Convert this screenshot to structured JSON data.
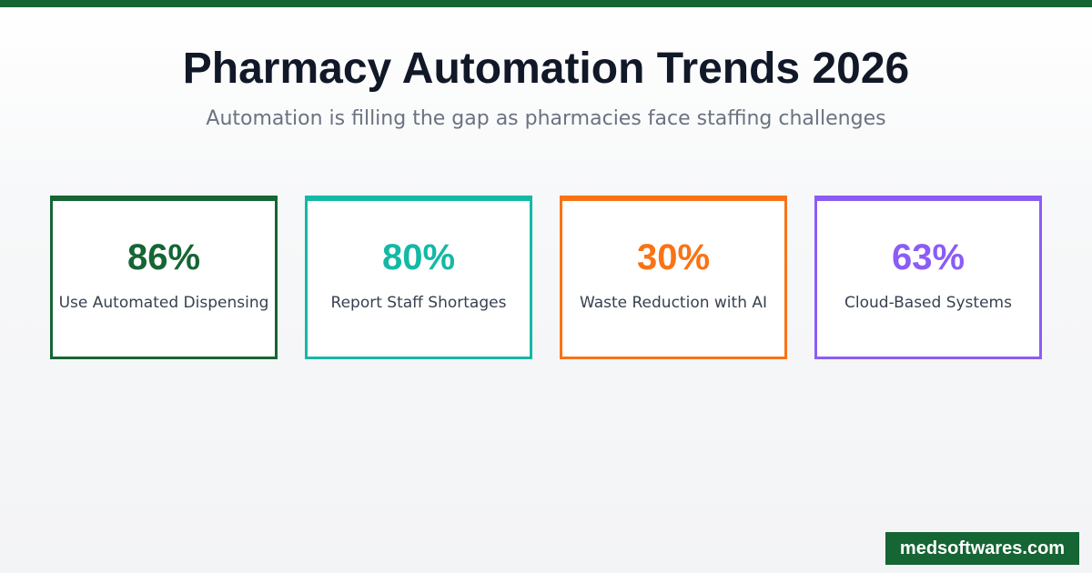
{
  "header": {
    "title": "Pharmacy Automation Trends 2026",
    "subtitle": "Automation is filling the gap as pharmacies face staffing challenges"
  },
  "colors": {
    "brand": "#166534"
  },
  "stats": [
    {
      "value": "86%",
      "label": "Use Automated Dispensing",
      "color": "#166534"
    },
    {
      "value": "80%",
      "label": "Report Staff Shortages",
      "color": "#14b8a6"
    },
    {
      "value": "30%",
      "label": "Waste Reduction with AI",
      "color": "#f97316"
    },
    {
      "value": "63%",
      "label": "Cloud-Based Systems",
      "color": "#8b5cf6"
    }
  ],
  "footer": {
    "badge": "medsoftwares.com"
  }
}
